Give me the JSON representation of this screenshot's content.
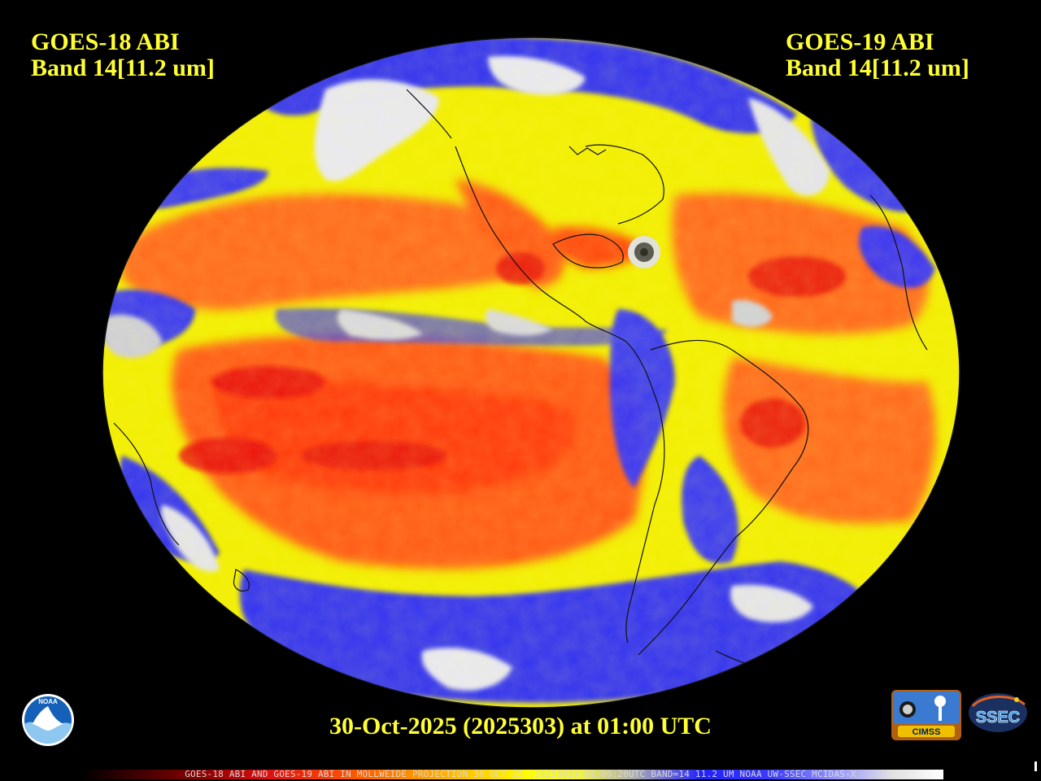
{
  "title_left": {
    "line1": "GOES-18 ABI",
    "line2": "Band 14[11.2 um]"
  },
  "title_right": {
    "line1": "GOES-19 ABI",
    "line2": "Band 14[11.2 um]"
  },
  "timestamp": "30-Oct-2025 (2025303) at 01:00 UTC",
  "info_line": "GOES-18 ABI AND GOES-19 ABI IN MOLLWEIDE PROJECTION 30 OCT 25 (2025303) 01:00:20UTC BAND=14 11.2 UM NOAA UW-SSEC MCIDAS-X",
  "logos": {
    "noaa": "NOAA",
    "cimss": "CIMSS",
    "ssec": "SSEC"
  },
  "colors": {
    "title_text": "#ffff33",
    "warm_ocean": "#ff5a1a",
    "cold_cloud_blue": "#2a2aff",
    "cloud_white": "#e8e8f4",
    "mid_yellow": "#f0f000",
    "background": "#000000"
  },
  "projection": "Mollweide"
}
